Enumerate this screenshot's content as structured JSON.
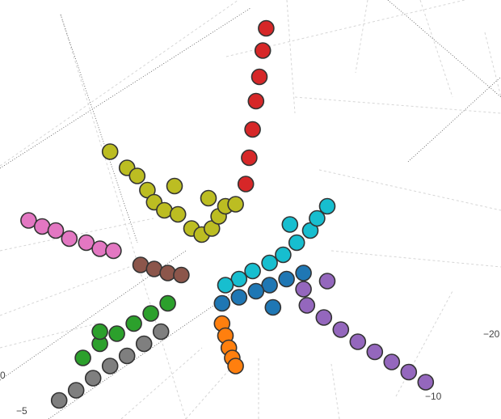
{
  "chart_data": {
    "type": "scatter",
    "projection": "3d",
    "marker": "circle",
    "grid": true,
    "legend": "none",
    "tick_labels": [
      "0",
      "−5",
      "−10",
      "−20"
    ],
    "series": [
      {
        "color": "#d62728",
        "values": [
          [
            0.1,
            10.9,
            0.0
          ],
          [
            0.2,
            12.2,
            0.0
          ],
          [
            0.3,
            13.6,
            0.0
          ],
          [
            0.4,
            15.0,
            0.0
          ],
          [
            0.5,
            16.2,
            0.0
          ],
          [
            0.6,
            17.5,
            0.0
          ],
          [
            0.7,
            18.6,
            0.0
          ]
        ]
      },
      {
        "color": "#bcbd22",
        "values": [
          [
            -3.4,
            11.7,
            0.0
          ],
          [
            -3.1,
            11.3,
            0.0
          ],
          [
            -2.8,
            10.6,
            0.0
          ],
          [
            -2.6,
            10.0,
            0.0
          ],
          [
            -2.3,
            9.6,
            0.0
          ],
          [
            -1.9,
            9.4,
            0.0
          ],
          [
            -1.5,
            8.7,
            0.0
          ],
          [
            -1.2,
            8.4,
            0.0
          ],
          [
            -0.9,
            8.7,
            0.0
          ],
          [
            -0.7,
            9.3,
            0.0
          ],
          [
            -0.5,
            9.8,
            0.0
          ],
          [
            -3.9,
            12.5,
            0.0
          ],
          [
            -2.0,
            10.8,
            0.0
          ],
          [
            -1.0,
            10.2,
            0.0
          ],
          [
            -0.2,
            9.9,
            0.0
          ]
        ]
      },
      {
        "color": "#e377c2",
        "values": [
          [
            -6.3,
            9.1,
            0.0
          ],
          [
            -5.9,
            8.8,
            0.0
          ],
          [
            -5.5,
            8.6,
            0.0
          ],
          [
            -5.1,
            8.2,
            0.0
          ],
          [
            -4.6,
            8.0,
            0.0
          ],
          [
            -4.2,
            7.7,
            0.0
          ],
          [
            -3.8,
            7.6,
            0.0
          ]
        ]
      },
      {
        "color": "#8c564b",
        "values": [
          [
            -3.0,
            6.9,
            0.0
          ],
          [
            -2.6,
            6.7,
            0.0
          ],
          [
            -2.2,
            6.5,
            0.0
          ],
          [
            -1.8,
            6.4,
            0.0
          ]
        ]
      },
      {
        "color": "#17becf",
        "values": [
          [
            1.4,
            8.9,
            0.0
          ],
          [
            2.0,
            8.6,
            0.0
          ],
          [
            1.6,
            8.0,
            0.0
          ],
          [
            1.2,
            7.4,
            0.0
          ],
          [
            0.8,
            7.0,
            0.0
          ],
          [
            0.3,
            6.6,
            0.0
          ],
          [
            -0.1,
            6.2,
            0.0
          ],
          [
            -0.5,
            5.9,
            0.0
          ],
          [
            2.5,
            9.8,
            0.0
          ],
          [
            2.2,
            9.2,
            0.0
          ]
        ]
      },
      {
        "color": "#1f77b4",
        "values": [
          [
            1.8,
            6.5,
            0.0
          ],
          [
            1.3,
            6.2,
            0.0
          ],
          [
            0.8,
            5.9,
            0.0
          ],
          [
            0.4,
            5.6,
            0.0
          ],
          [
            -0.1,
            5.3,
            0.0
          ],
          [
            -0.6,
            5.0,
            0.0
          ],
          [
            0.9,
            4.8,
            0.0
          ]
        ]
      },
      {
        "color": "#9467bd",
        "values": [
          [
            1.9,
            4.9,
            0.0
          ],
          [
            2.4,
            4.3,
            0.0
          ],
          [
            2.9,
            3.7,
            0.0
          ],
          [
            3.4,
            3.1,
            0.0
          ],
          [
            3.9,
            2.6,
            0.0
          ],
          [
            4.4,
            2.1,
            0.0
          ],
          [
            4.9,
            1.6,
            0.0
          ],
          [
            5.4,
            1.1,
            0.0
          ],
          [
            2.5,
            6.1,
            0.0
          ],
          [
            1.8,
            5.7,
            0.0
          ]
        ]
      },
      {
        "color": "#ff7f0e",
        "values": [
          [
            -0.6,
            4.0,
            0.0
          ],
          [
            -0.5,
            3.4,
            0.0
          ],
          [
            -0.4,
            2.8,
            0.0
          ],
          [
            -0.3,
            2.3,
            0.0
          ],
          [
            -0.2,
            1.9,
            0.0
          ]
        ]
      },
      {
        "color": "#2ca02c",
        "values": [
          [
            -2.2,
            5.0,
            0.0
          ],
          [
            -2.7,
            4.5,
            0.0
          ],
          [
            -3.2,
            4.0,
            0.0
          ],
          [
            -3.7,
            3.5,
            0.0
          ],
          [
            -4.2,
            3.0,
            0.0
          ],
          [
            -4.7,
            2.3,
            0.0
          ],
          [
            -4.2,
            3.6,
            0.0
          ]
        ]
      },
      {
        "color": "#7f7f7f",
        "values": [
          [
            -2.4,
            3.6,
            0.0
          ],
          [
            -2.9,
            3.0,
            0.0
          ],
          [
            -3.4,
            2.4,
            0.0
          ],
          [
            -3.9,
            1.9,
            0.0
          ],
          [
            -4.4,
            1.3,
            0.0
          ],
          [
            -4.9,
            0.7,
            0.0
          ],
          [
            -5.4,
            0.2,
            0.0
          ]
        ]
      }
    ]
  }
}
